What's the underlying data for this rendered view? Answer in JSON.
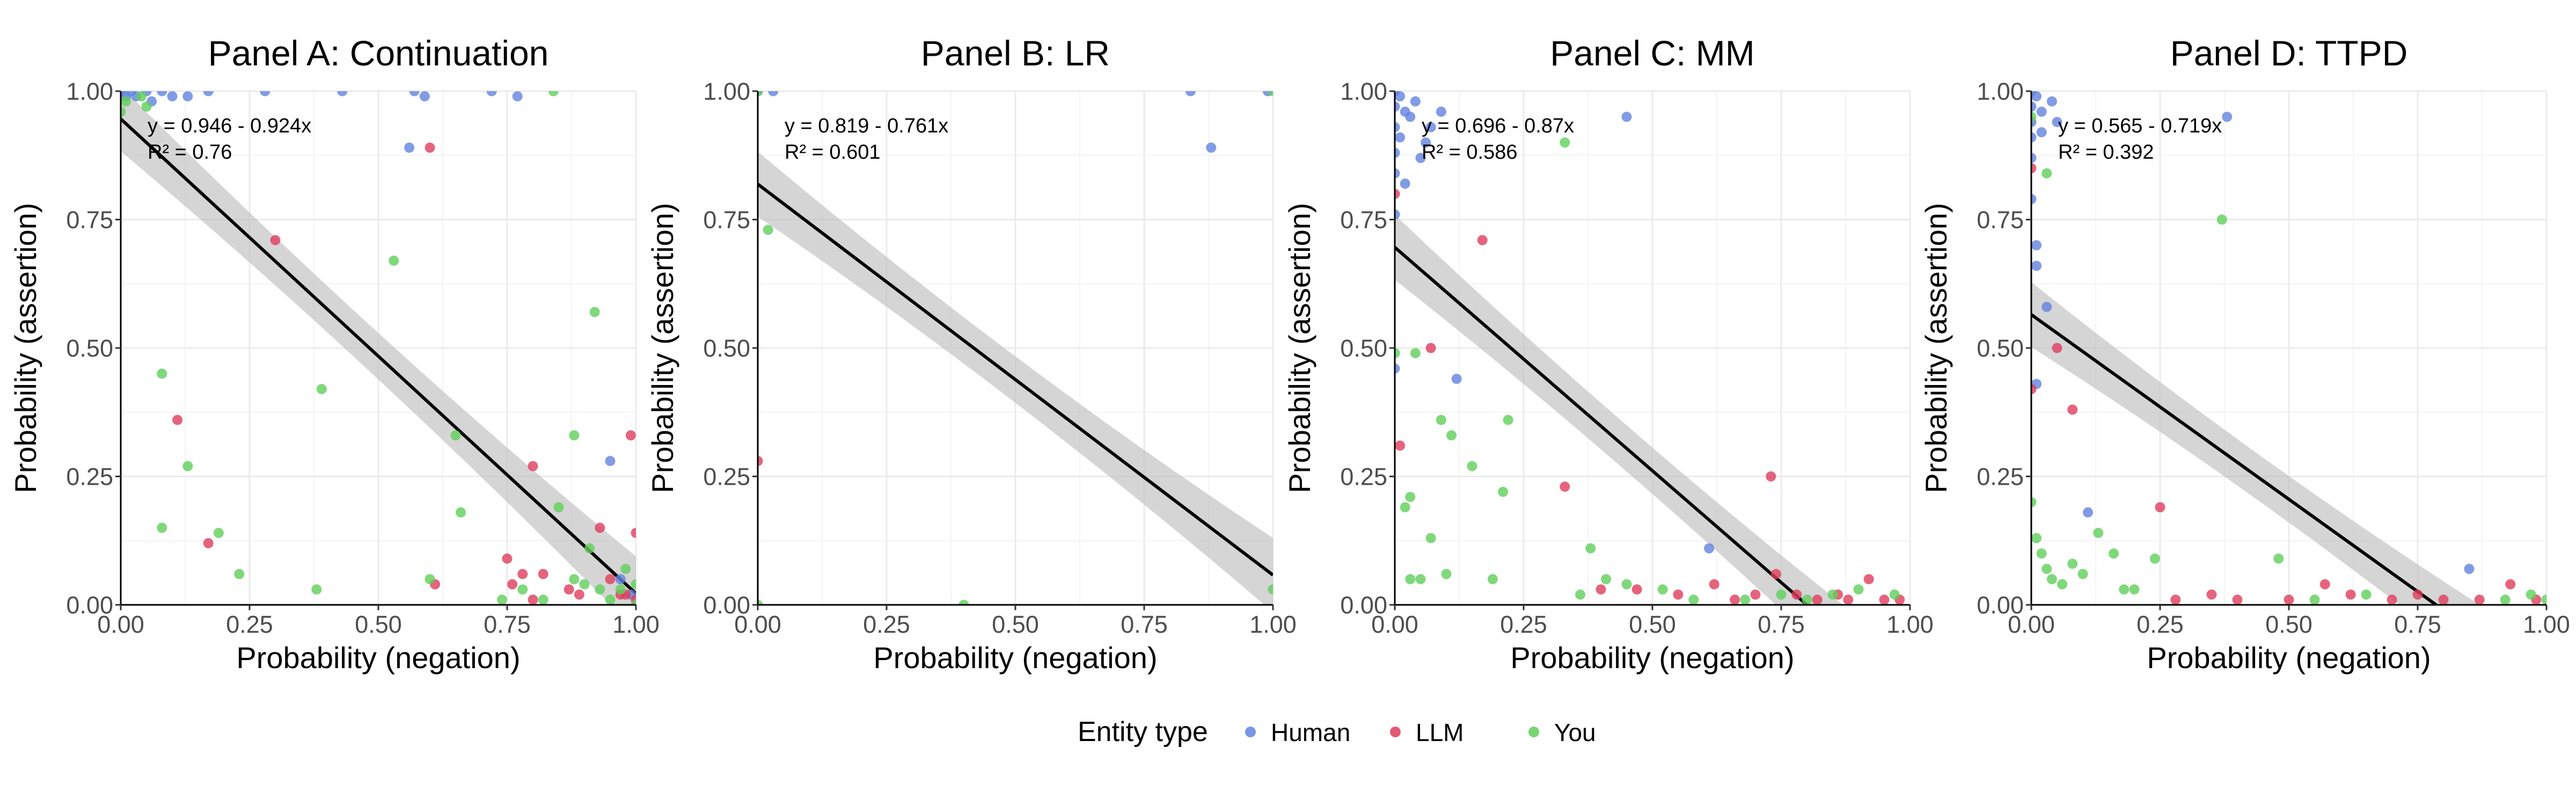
{
  "chart_data": [
    {
      "type": "scatter",
      "title": "Panel A: Continuation",
      "xlabel": "Probability (negation)",
      "ylabel": "Probability (assertion)",
      "xlim": [
        0,
        1
      ],
      "ylim": [
        0,
        1
      ],
      "xticks": [
        "0.00",
        "0.25",
        "0.50",
        "0.75",
        "1.00"
      ],
      "yticks": [
        "0.00",
        "0.25",
        "0.50",
        "0.75",
        "1.00"
      ],
      "fit": {
        "intercept": 0.946,
        "slope": -0.924,
        "equation": "y = 0.946 - 0.924x",
        "r2": "R² = 0.76"
      },
      "series": [
        {
          "name": "Human",
          "points": [
            [
              0.0,
              1.0
            ],
            [
              0.01,
              0.99
            ],
            [
              0.02,
              1.0
            ],
            [
              0.03,
              0.99
            ],
            [
              0.05,
              1.0
            ],
            [
              0.06,
              0.98
            ],
            [
              0.08,
              1.0
            ],
            [
              0.1,
              0.99
            ],
            [
              0.13,
              0.99
            ],
            [
              0.17,
              1.0
            ],
            [
              0.28,
              1.0
            ],
            [
              0.43,
              1.0
            ],
            [
              0.56,
              0.89
            ],
            [
              0.57,
              1.0
            ],
            [
              0.59,
              0.99
            ],
            [
              0.72,
              1.0
            ],
            [
              0.77,
              0.99
            ],
            [
              0.95,
              0.28
            ],
            [
              0.97,
              0.05
            ],
            [
              0.99,
              0.02
            ]
          ]
        },
        {
          "name": "LLM",
          "points": [
            [
              0.11,
              0.36
            ],
            [
              0.17,
              0.12
            ],
            [
              0.3,
              0.71
            ],
            [
              0.6,
              0.89
            ],
            [
              0.61,
              0.04
            ],
            [
              0.75,
              0.09
            ],
            [
              0.76,
              0.04
            ],
            [
              0.78,
              0.06
            ],
            [
              0.8,
              0.27
            ],
            [
              0.8,
              0.01
            ],
            [
              0.82,
              0.06
            ],
            [
              0.87,
              0.03
            ],
            [
              0.89,
              0.02
            ],
            [
              0.93,
              0.15
            ],
            [
              0.95,
              0.05
            ],
            [
              0.97,
              0.02
            ],
            [
              0.98,
              0.02
            ],
            [
              0.99,
              0.33
            ],
            [
              1.0,
              0.14
            ],
            [
              1.0,
              0.01
            ]
          ]
        },
        {
          "name": "You",
          "points": [
            [
              0.0,
              0.96
            ],
            [
              0.01,
              0.98
            ],
            [
              0.04,
              0.99
            ],
            [
              0.05,
              0.97
            ],
            [
              0.08,
              0.45
            ],
            [
              0.08,
              0.15
            ],
            [
              0.13,
              0.27
            ],
            [
              0.19,
              0.14
            ],
            [
              0.23,
              0.06
            ],
            [
              0.38,
              0.03
            ],
            [
              0.39,
              0.42
            ],
            [
              0.53,
              0.67
            ],
            [
              0.6,
              0.05
            ],
            [
              0.65,
              0.33
            ],
            [
              0.66,
              0.18
            ],
            [
              0.74,
              0.01
            ],
            [
              0.78,
              0.03
            ],
            [
              0.82,
              0.01
            ],
            [
              0.84,
              1.0
            ],
            [
              0.85,
              0.19
            ],
            [
              0.88,
              0.33
            ],
            [
              0.88,
              0.05
            ],
            [
              0.9,
              0.04
            ],
            [
              0.91,
              0.11
            ],
            [
              0.92,
              0.57
            ],
            [
              0.93,
              0.03
            ],
            [
              0.95,
              0.01
            ],
            [
              0.97,
              0.03
            ],
            [
              0.98,
              0.07
            ],
            [
              1.0,
              0.04
            ],
            [
              1.0,
              0.0
            ]
          ]
        }
      ]
    },
    {
      "type": "scatter",
      "title": "Panel B: LR",
      "xlabel": "Probability (negation)",
      "ylabel": "Probability (assertion)",
      "xlim": [
        0,
        1
      ],
      "ylim": [
        0,
        1
      ],
      "xticks": [
        "0.00",
        "0.25",
        "0.50",
        "0.75",
        "1.00"
      ],
      "yticks": [
        "0.00",
        "0.25",
        "0.50",
        "0.75",
        "1.00"
      ],
      "fit": {
        "intercept": 0.819,
        "slope": -0.761,
        "equation": "y = 0.819 - 0.761x",
        "r2": "R² = 0.601"
      },
      "series": [
        {
          "name": "Human",
          "points": [
            [
              0.0,
              1.0
            ],
            [
              0.03,
              1.0
            ],
            [
              0.84,
              1.0
            ],
            [
              0.88,
              0.89
            ],
            [
              0.99,
              1.0
            ]
          ]
        },
        {
          "name": "LLM",
          "points": [
            [
              0.0,
              0.28
            ]
          ]
        },
        {
          "name": "You",
          "points": [
            [
              0.0,
              1.0
            ],
            [
              0.02,
              0.73
            ],
            [
              0.0,
              0.0
            ],
            [
              0.4,
              0.0
            ],
            [
              1.0,
              1.0
            ],
            [
              1.0,
              0.03
            ]
          ]
        }
      ]
    },
    {
      "type": "scatter",
      "title": "Panel C: MM",
      "xlabel": "Probability (negation)",
      "ylabel": "Probability (assertion)",
      "xlim": [
        0,
        1
      ],
      "ylim": [
        0,
        1
      ],
      "xticks": [
        "0.00",
        "0.25",
        "0.50",
        "0.75",
        "1.00"
      ],
      "yticks": [
        "0.00",
        "0.25",
        "0.50",
        "0.75",
        "1.00"
      ],
      "fit": {
        "intercept": 0.696,
        "slope": -0.87,
        "equation": "y = 0.696 - 0.87x",
        "r2": "R² = 0.586"
      },
      "series": [
        {
          "name": "Human",
          "points": [
            [
              0.0,
              1.0
            ],
            [
              0.0,
              0.97
            ],
            [
              0.0,
              0.93
            ],
            [
              0.0,
              0.88
            ],
            [
              0.0,
              0.84
            ],
            [
              0.0,
              0.76
            ],
            [
              0.0,
              0.46
            ],
            [
              0.01,
              0.99
            ],
            [
              0.01,
              0.91
            ],
            [
              0.02,
              0.96
            ],
            [
              0.02,
              0.82
            ],
            [
              0.03,
              0.95
            ],
            [
              0.04,
              0.98
            ],
            [
              0.05,
              0.87
            ],
            [
              0.06,
              0.9
            ],
            [
              0.07,
              0.93
            ],
            [
              0.09,
              0.96
            ],
            [
              0.12,
              0.44
            ],
            [
              0.45,
              0.95
            ],
            [
              0.61,
              0.11
            ]
          ]
        },
        {
          "name": "LLM",
          "points": [
            [
              0.0,
              0.8
            ],
            [
              0.01,
              0.31
            ],
            [
              0.07,
              0.5
            ],
            [
              0.17,
              0.71
            ],
            [
              0.33,
              0.23
            ],
            [
              0.73,
              0.25
            ],
            [
              0.4,
              0.03
            ],
            [
              0.47,
              0.03
            ],
            [
              0.55,
              0.02
            ],
            [
              0.62,
              0.04
            ],
            [
              0.66,
              0.01
            ],
            [
              0.7,
              0.02
            ],
            [
              0.74,
              0.06
            ],
            [
              0.78,
              0.02
            ],
            [
              0.82,
              0.01
            ],
            [
              0.86,
              0.02
            ],
            [
              0.88,
              0.01
            ],
            [
              0.92,
              0.05
            ],
            [
              0.95,
              0.01
            ],
            [
              0.98,
              0.01
            ]
          ]
        },
        {
          "name": "You",
          "points": [
            [
              0.0,
              0.49
            ],
            [
              0.02,
              0.19
            ],
            [
              0.03,
              0.21
            ],
            [
              0.04,
              0.49
            ],
            [
              0.05,
              0.05
            ],
            [
              0.07,
              0.13
            ],
            [
              0.09,
              0.36
            ],
            [
              0.11,
              0.33
            ],
            [
              0.15,
              0.27
            ],
            [
              0.21,
              0.22
            ],
            [
              0.22,
              0.36
            ],
            [
              0.33,
              0.9
            ],
            [
              0.36,
              0.02
            ],
            [
              0.38,
              0.11
            ],
            [
              0.41,
              0.05
            ],
            [
              0.45,
              0.04
            ],
            [
              0.52,
              0.03
            ],
            [
              0.58,
              0.01
            ],
            [
              0.68,
              0.01
            ],
            [
              0.75,
              0.02
            ],
            [
              0.8,
              0.01
            ],
            [
              0.85,
              0.02
            ],
            [
              0.9,
              0.03
            ],
            [
              0.97,
              0.02
            ],
            [
              0.03,
              0.05
            ],
            [
              0.1,
              0.06
            ],
            [
              0.19,
              0.05
            ]
          ]
        }
      ]
    },
    {
      "type": "scatter",
      "title": "Panel D: TTPD",
      "xlabel": "Probability (negation)",
      "ylabel": "Probability (assertion)",
      "xlim": [
        0,
        1
      ],
      "ylim": [
        0,
        1
      ],
      "xticks": [
        "0.00",
        "0.25",
        "0.50",
        "0.75",
        "1.00"
      ],
      "yticks": [
        "0.00",
        "0.25",
        "0.50",
        "0.75",
        "1.00"
      ],
      "fit": {
        "intercept": 0.565,
        "slope": -0.719,
        "equation": "y = 0.565 - 0.719x",
        "r2": "R² = 0.392"
      },
      "series": [
        {
          "name": "Human",
          "points": [
            [
              0.0,
              1.0
            ],
            [
              0.0,
              0.97
            ],
            [
              0.0,
              0.94
            ],
            [
              0.0,
              0.91
            ],
            [
              0.0,
              0.87
            ],
            [
              0.0,
              0.79
            ],
            [
              0.01,
              0.99
            ],
            [
              0.01,
              0.7
            ],
            [
              0.01,
              0.66
            ],
            [
              0.01,
              0.43
            ],
            [
              0.02,
              0.96
            ],
            [
              0.02,
              0.92
            ],
            [
              0.03,
              0.58
            ],
            [
              0.04,
              0.98
            ],
            [
              0.05,
              0.94
            ],
            [
              0.11,
              0.18
            ],
            [
              0.85,
              0.07
            ],
            [
              0.38,
              0.95
            ]
          ]
        },
        {
          "name": "LLM",
          "points": [
            [
              0.0,
              0.85
            ],
            [
              0.0,
              0.42
            ],
            [
              0.05,
              0.5
            ],
            [
              0.08,
              0.38
            ],
            [
              0.25,
              0.19
            ],
            [
              0.28,
              0.01
            ],
            [
              0.35,
              0.02
            ],
            [
              0.4,
              0.01
            ],
            [
              0.5,
              0.01
            ],
            [
              0.57,
              0.04
            ],
            [
              0.62,
              0.02
            ],
            [
              0.7,
              0.01
            ],
            [
              0.75,
              0.02
            ],
            [
              0.8,
              0.01
            ],
            [
              0.87,
              0.01
            ],
            [
              0.93,
              0.04
            ],
            [
              0.98,
              0.01
            ]
          ]
        },
        {
          "name": "You",
          "points": [
            [
              0.0,
              0.95
            ],
            [
              0.03,
              0.84
            ],
            [
              0.0,
              0.2
            ],
            [
              0.01,
              0.13
            ],
            [
              0.02,
              0.1
            ],
            [
              0.03,
              0.07
            ],
            [
              0.04,
              0.05
            ],
            [
              0.06,
              0.04
            ],
            [
              0.08,
              0.08
            ],
            [
              0.1,
              0.06
            ],
            [
              0.13,
              0.14
            ],
            [
              0.16,
              0.1
            ],
            [
              0.18,
              0.03
            ],
            [
              0.2,
              0.03
            ],
            [
              0.24,
              0.09
            ],
            [
              0.37,
              0.75
            ],
            [
              0.48,
              0.09
            ],
            [
              0.55,
              0.01
            ],
            [
              0.65,
              0.02
            ],
            [
              0.92,
              0.01
            ],
            [
              0.97,
              0.02
            ],
            [
              1.0,
              0.01
            ]
          ]
        }
      ]
    }
  ],
  "legend": {
    "title": "Entity type",
    "items": [
      {
        "label": "Human",
        "color": "#6182de"
      },
      {
        "label": "LLM",
        "color": "#e03c5c"
      },
      {
        "label": "You",
        "color": "#5fcf5a"
      }
    ]
  },
  "colors": {
    "Human": "#6182de",
    "LLM": "#e03c5c",
    "You": "#5fcf5a",
    "fit_line": "#000000",
    "ribbon": "#bfbfbf"
  }
}
